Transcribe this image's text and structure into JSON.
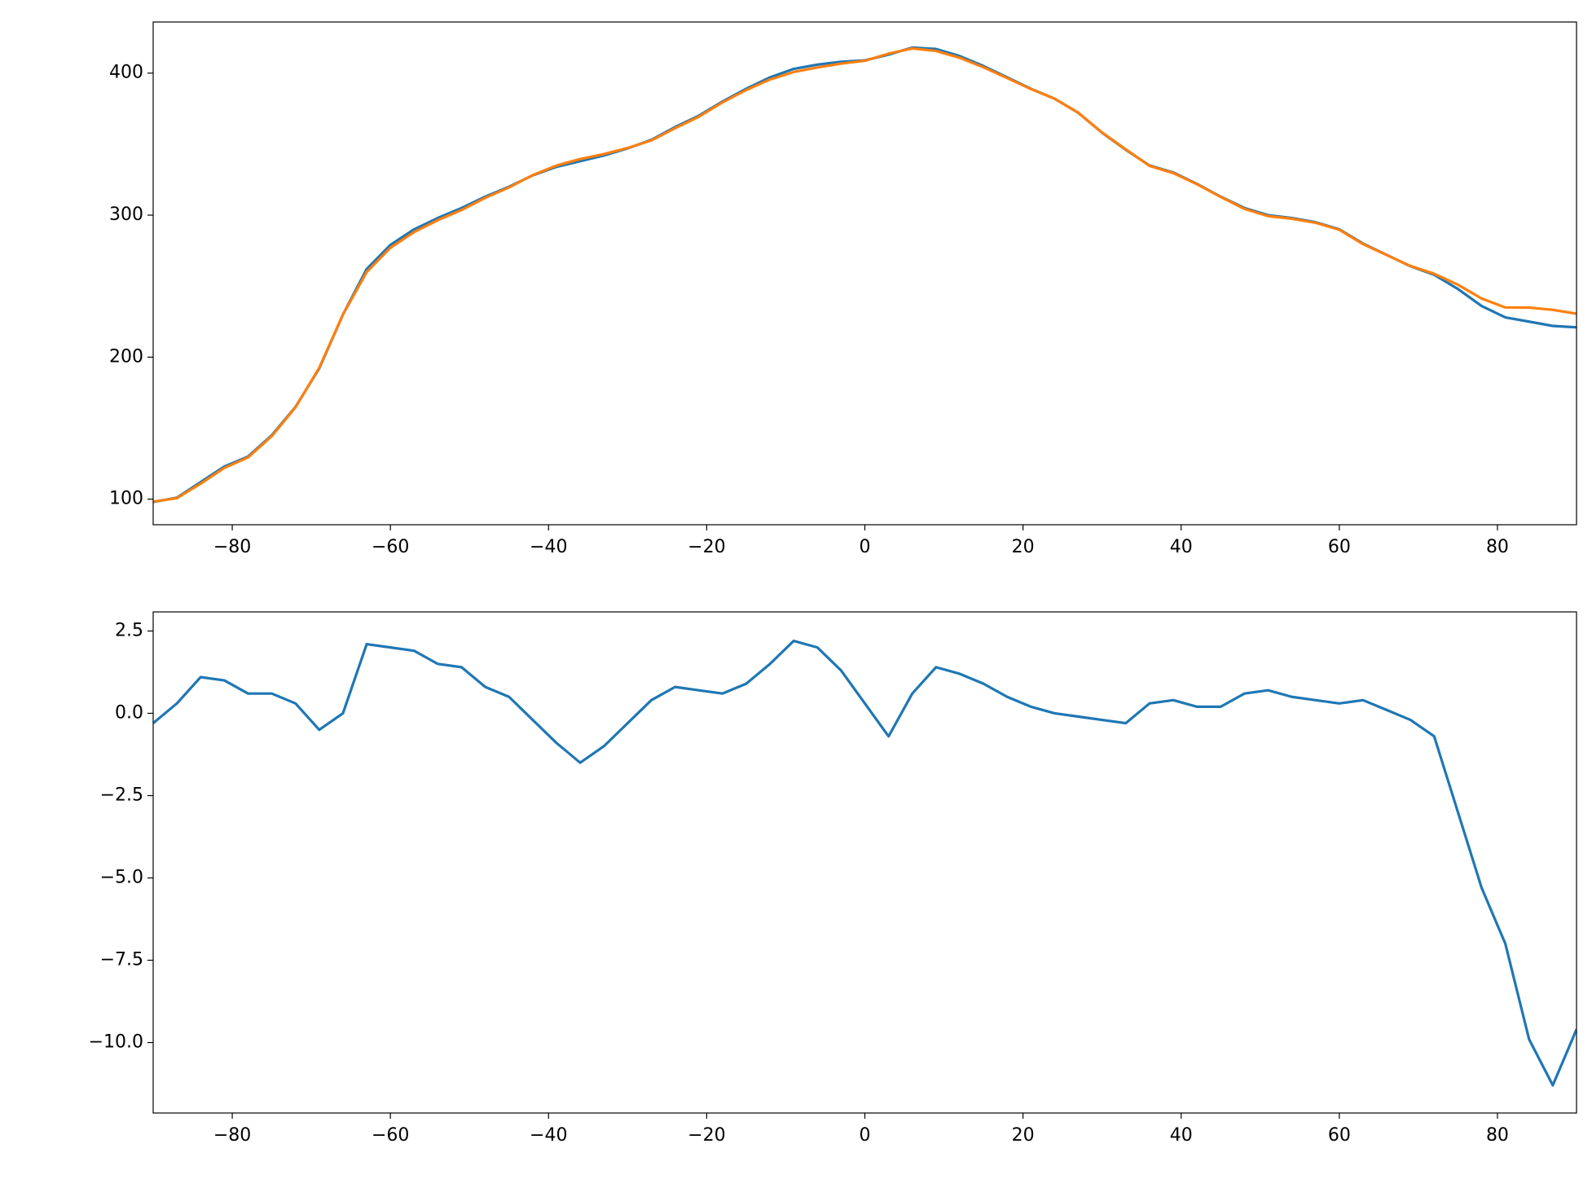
{
  "chart_data": [
    {
      "type": "line",
      "x": [
        -90,
        -87,
        -84,
        -81,
        -78,
        -75,
        -72,
        -69,
        -66,
        -63,
        -60,
        -57,
        -54,
        -51,
        -48,
        -45,
        -42,
        -39,
        -36,
        -33,
        -30,
        -27,
        -24,
        -21,
        -18,
        -15,
        -12,
        -9,
        -6,
        -3,
        0,
        3,
        6,
        9,
        12,
        15,
        18,
        21,
        24,
        27,
        30,
        33,
        36,
        39,
        42,
        45,
        48,
        51,
        54,
        57,
        60,
        63,
        66,
        69,
        72,
        75,
        78,
        81,
        84,
        87,
        90
      ],
      "series": [
        {
          "color": "#1f77b4",
          "values": [
            98,
            101,
            112,
            123,
            130,
            145,
            165,
            192,
            230,
            262,
            279,
            290,
            298,
            305,
            313,
            320,
            328,
            334,
            338,
            342,
            347,
            353,
            362,
            370,
            380,
            389,
            397,
            403,
            406,
            408,
            409,
            413,
            418,
            417,
            412,
            405,
            397,
            389,
            382,
            372,
            358,
            346,
            335,
            330,
            322,
            313,
            305,
            300,
            298,
            295,
            290,
            280,
            272,
            264,
            258,
            248,
            236,
            228,
            225,
            222,
            221
          ]
        },
        {
          "color": "#ff7f0e",
          "values": [
            98.3,
            100.7,
            110.9,
            122,
            129.4,
            144.4,
            164.7,
            192.5,
            230,
            259.9,
            277,
            288.1,
            296.5,
            303.6,
            312.2,
            319.5,
            328.2,
            334.9,
            339.5,
            343,
            347.3,
            352.6,
            361.2,
            369.3,
            379.4,
            388.1,
            395.5,
            400.8,
            404,
            406.7,
            408.7,
            413.7,
            417.4,
            415.6,
            410.8,
            404.1,
            396.5,
            388.8,
            382,
            372.1,
            358.2,
            346.3,
            334.7,
            329.6,
            321.8,
            312.8,
            304.4,
            299.3,
            297.5,
            294.6,
            289.7,
            279.6,
            271.9,
            264.2,
            258.7,
            251,
            241.3,
            235,
            234.9,
            233.3,
            230.6
          ]
        }
      ],
      "xlim": [
        -90,
        90
      ],
      "ylim": [
        82,
        436
      ],
      "xticks": [
        {
          "value": -80,
          "label": "−80"
        },
        {
          "value": -60,
          "label": "−60"
        },
        {
          "value": -40,
          "label": "−40"
        },
        {
          "value": -20,
          "label": "−20"
        },
        0,
        20,
        40,
        60,
        80
      ],
      "yticks": [
        100,
        200,
        300,
        400
      ]
    },
    {
      "type": "line",
      "x": [
        -90,
        -87,
        -84,
        -81,
        -78,
        -75,
        -72,
        -69,
        -66,
        -63,
        -60,
        -57,
        -54,
        -51,
        -48,
        -45,
        -42,
        -39,
        -36,
        -33,
        -30,
        -27,
        -24,
        -21,
        -18,
        -15,
        -12,
        -9,
        -6,
        -3,
        0,
        3,
        6,
        9,
        12,
        15,
        18,
        21,
        24,
        27,
        30,
        33,
        36,
        39,
        42,
        45,
        48,
        51,
        54,
        57,
        60,
        63,
        66,
        69,
        72,
        75,
        78,
        81,
        84,
        87,
        90
      ],
      "series": [
        {
          "color": "#1f77b4",
          "values": [
            -0.3,
            0.3,
            1.1,
            1.0,
            0.6,
            0.6,
            0.3,
            -0.5,
            0.0,
            2.1,
            2.0,
            1.9,
            1.5,
            1.4,
            0.8,
            0.5,
            -0.2,
            -0.9,
            -1.5,
            -1.0,
            -0.3,
            0.4,
            0.8,
            0.7,
            0.6,
            0.9,
            1.5,
            2.2,
            2.0,
            1.3,
            0.3,
            -0.7,
            0.6,
            1.4,
            1.2,
            0.9,
            0.5,
            0.2,
            0.0,
            -0.1,
            -0.2,
            -0.3,
            0.3,
            0.4,
            0.2,
            0.2,
            0.6,
            0.7,
            0.5,
            0.4,
            0.3,
            0.4,
            0.1,
            -0.2,
            -0.7,
            -3.0,
            -5.3,
            -7.0,
            -9.9,
            -11.3,
            -9.6
          ]
        }
      ],
      "xlim": [
        -90,
        90
      ],
      "ylim": [
        -12.14,
        3.08
      ],
      "xticks": [
        {
          "value": -80,
          "label": "−80"
        },
        {
          "value": -60,
          "label": "−60"
        },
        {
          "value": -40,
          "label": "−40"
        },
        {
          "value": -20,
          "label": "−20"
        },
        0,
        20,
        40,
        60,
        80
      ],
      "yticks": [
        2.5,
        {
          "value": 0,
          "label": "0.0"
        },
        {
          "value": -2.5,
          "label": "−2.5"
        },
        {
          "value": -5,
          "label": "−5.0"
        },
        {
          "value": -7.5,
          "label": "−7.5"
        },
        {
          "value": -10,
          "label": "−10.0"
        }
      ]
    }
  ]
}
